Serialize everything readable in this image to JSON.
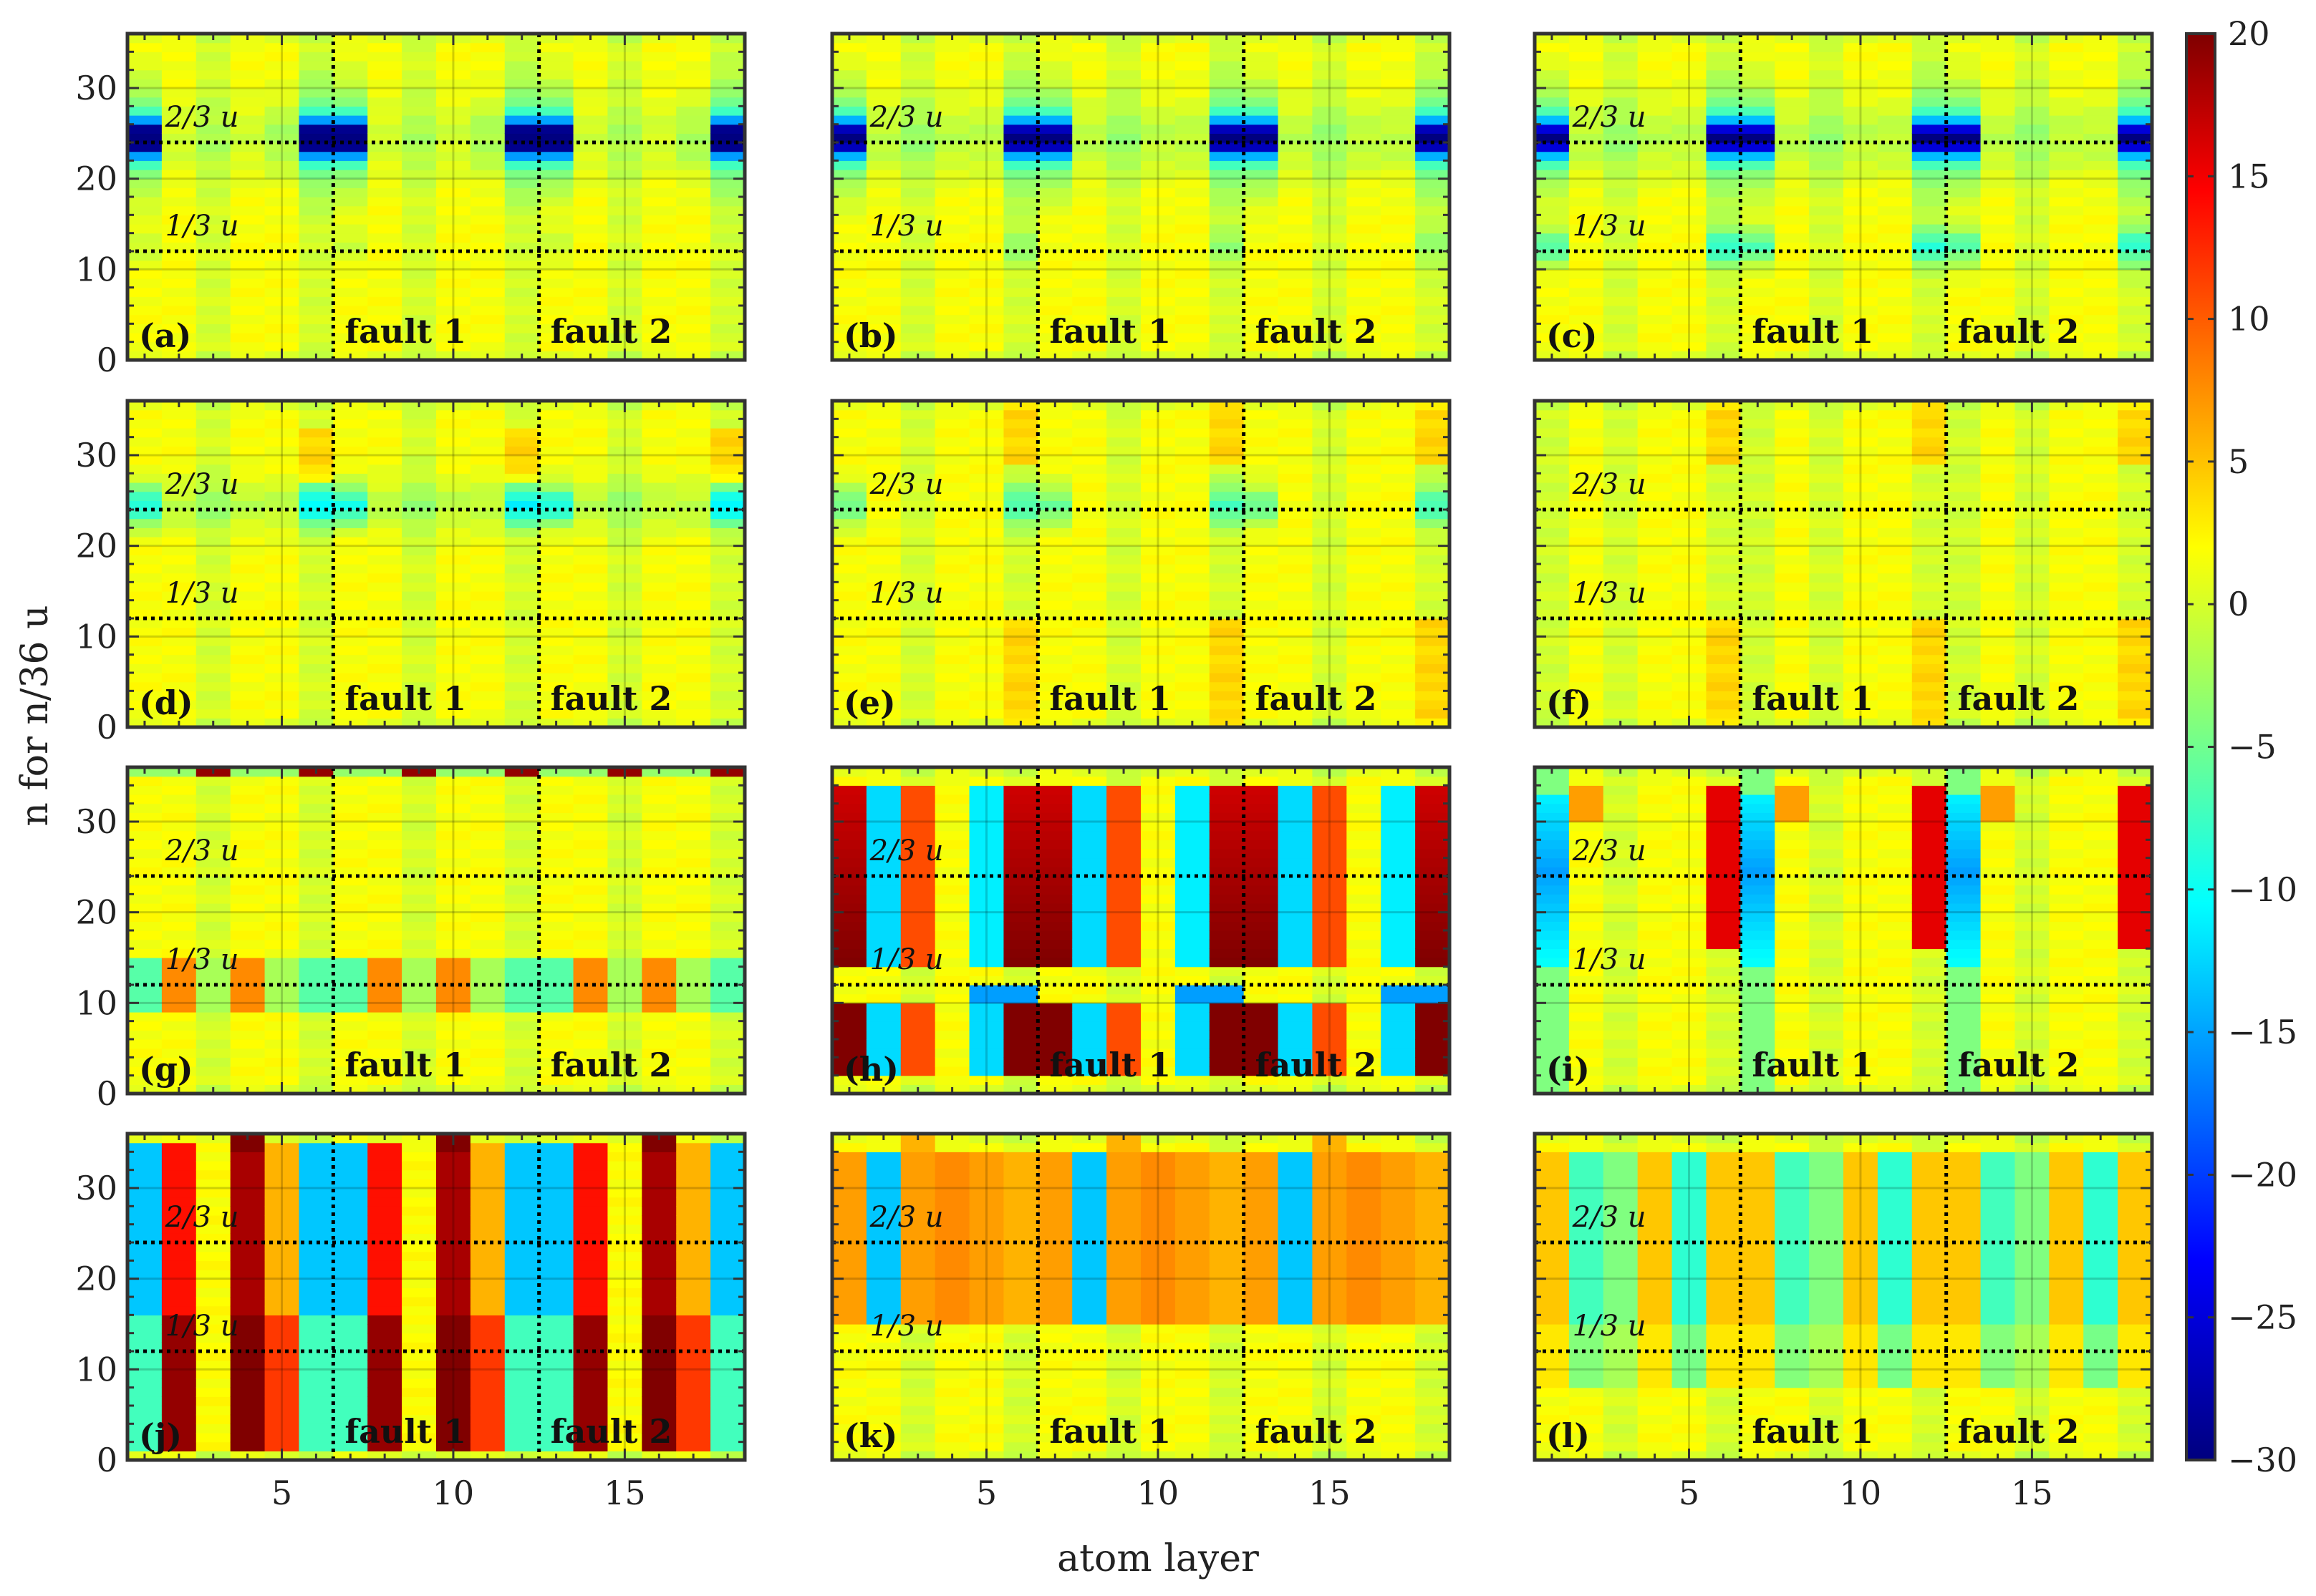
{
  "chart_data": {
    "type": "heatmap",
    "xlabel": "atom layer",
    "ylabel": "n for n/36 u",
    "x_range": [
      0.5,
      18.5
    ],
    "y_range": [
      0,
      36
    ],
    "x_ticks": [
      5,
      10,
      15
    ],
    "y_ticks": [
      0,
      10,
      20,
      30
    ],
    "colorbar": {
      "range": [
        -30,
        20
      ],
      "ticks": [
        20,
        15,
        10,
        5,
        0,
        -5,
        -10,
        -15,
        -20,
        -25,
        -30
      ],
      "tick_labels": [
        "20",
        "15",
        "10",
        "5",
        "0",
        "−5",
        "−10",
        "−15",
        "−20",
        "−25",
        "−30"
      ],
      "colormap": "jet"
    },
    "fault_lines_x": [
      6.5,
      12.5
    ],
    "reference_lines_n": [
      12,
      24
    ],
    "fault_labels": [
      "fault 1",
      "fault 2"
    ],
    "reference_labels": [
      "1/3 u",
      "2/3 u"
    ],
    "panels": [
      {
        "label": "(a)",
        "pattern": "a"
      },
      {
        "label": "(b)",
        "pattern": "b"
      },
      {
        "label": "(c)",
        "pattern": "c"
      },
      {
        "label": "(d)",
        "pattern": "d"
      },
      {
        "label": "(e)",
        "pattern": "e"
      },
      {
        "label": "(f)",
        "pattern": "f"
      },
      {
        "label": "(g)",
        "pattern": "g"
      },
      {
        "label": "(h)",
        "pattern": "h"
      },
      {
        "label": "(i)",
        "pattern": "i"
      },
      {
        "label": "(j)",
        "pattern": "j"
      },
      {
        "label": "(k)",
        "pattern": "k"
      },
      {
        "label": "(l)",
        "pattern": "l"
      }
    ]
  }
}
